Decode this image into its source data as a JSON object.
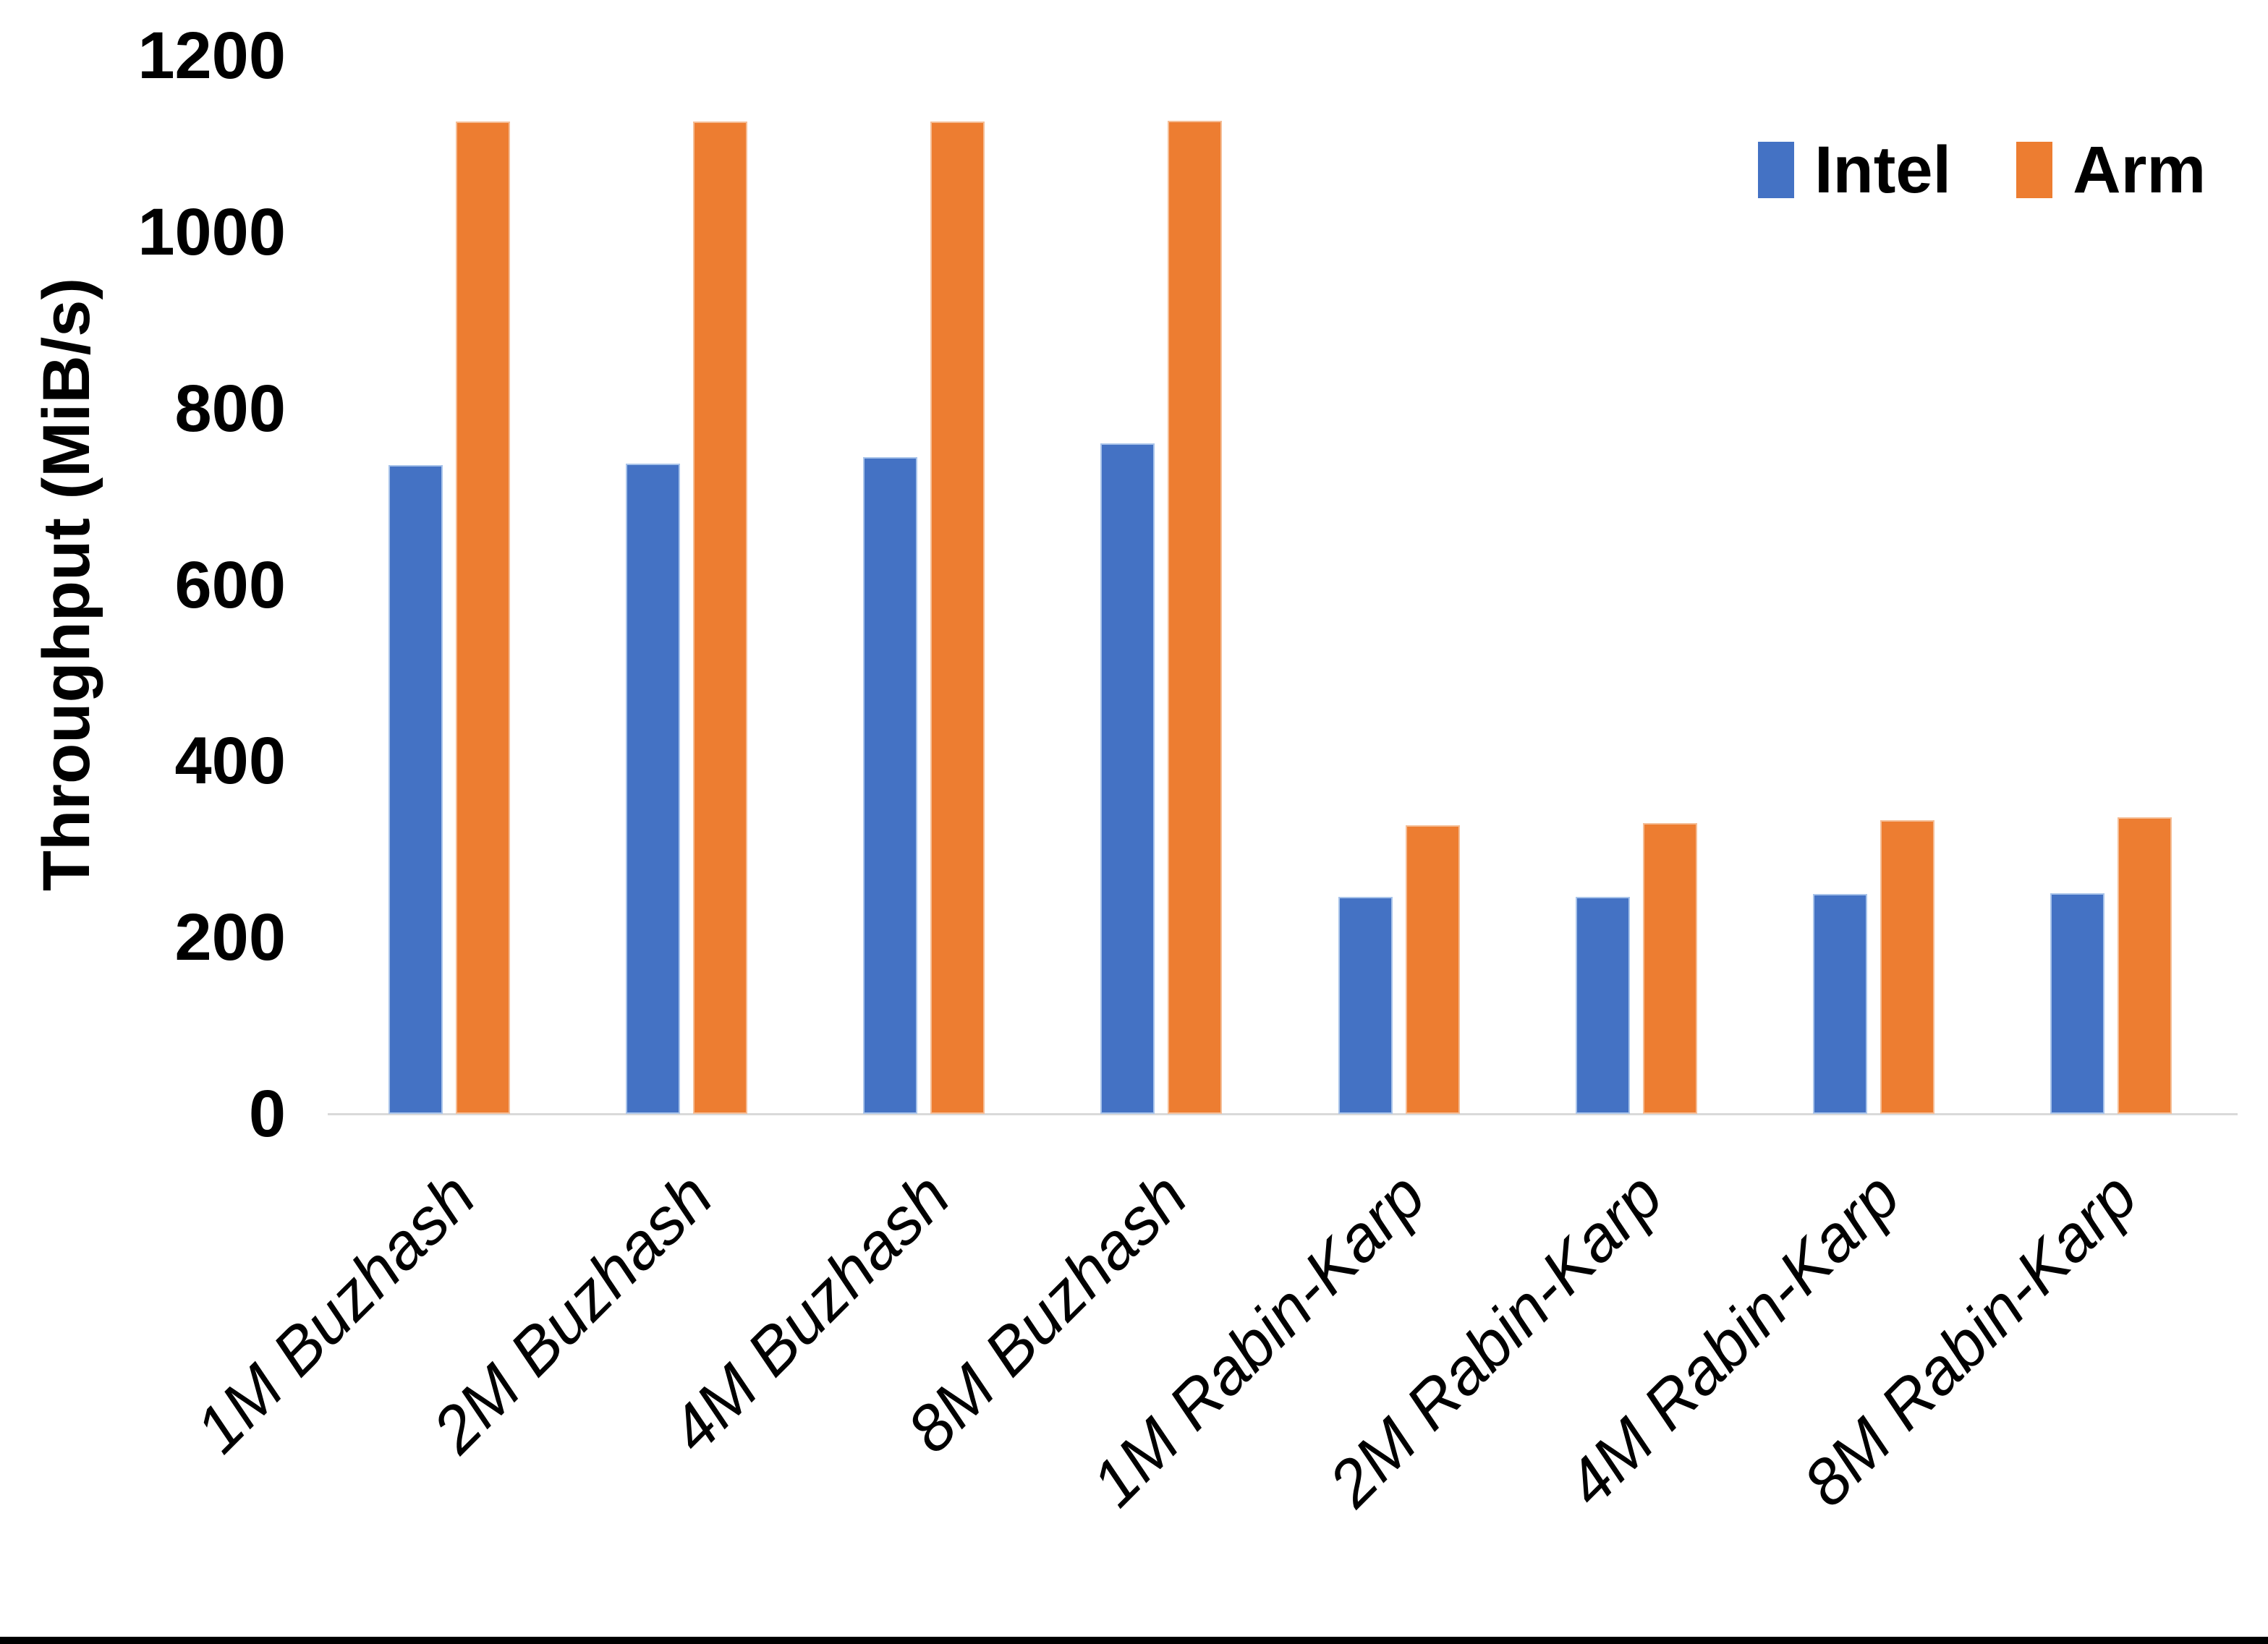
{
  "chart_data": {
    "type": "bar",
    "title": "",
    "xlabel": "",
    "ylabel": "Throughput (MiB/s)",
    "ylim": [
      0,
      1200
    ],
    "yticks": [
      0,
      200,
      400,
      600,
      800,
      1000,
      1200
    ],
    "grid": false,
    "legend_position": "top-right",
    "categories": [
      "1M Buzhash",
      "2M Buzhash",
      "4M Buzhash",
      "8M Buzhash",
      "1M Rabin-Karp",
      "2M Rabin-Karp",
      "4M Rabin-Karp",
      "8M Rabin-Karp"
    ],
    "series": [
      {
        "name": "Intel",
        "color": "#4472C4",
        "edge_color": "#A9C4EA",
        "values": [
          736,
          737,
          745,
          760,
          246,
          246,
          249,
          250
        ]
      },
      {
        "name": "Arm",
        "color": "#ED7D31",
        "edge_color": "#F5BD95",
        "values": [
          1125,
          1125,
          1125,
          1126,
          327,
          330,
          333,
          336
        ]
      }
    ]
  },
  "colors": {
    "background": "#FFFFFF",
    "axis_line": "#D9D9D9",
    "text": "#000000",
    "bottom_bar": "#000000"
  }
}
